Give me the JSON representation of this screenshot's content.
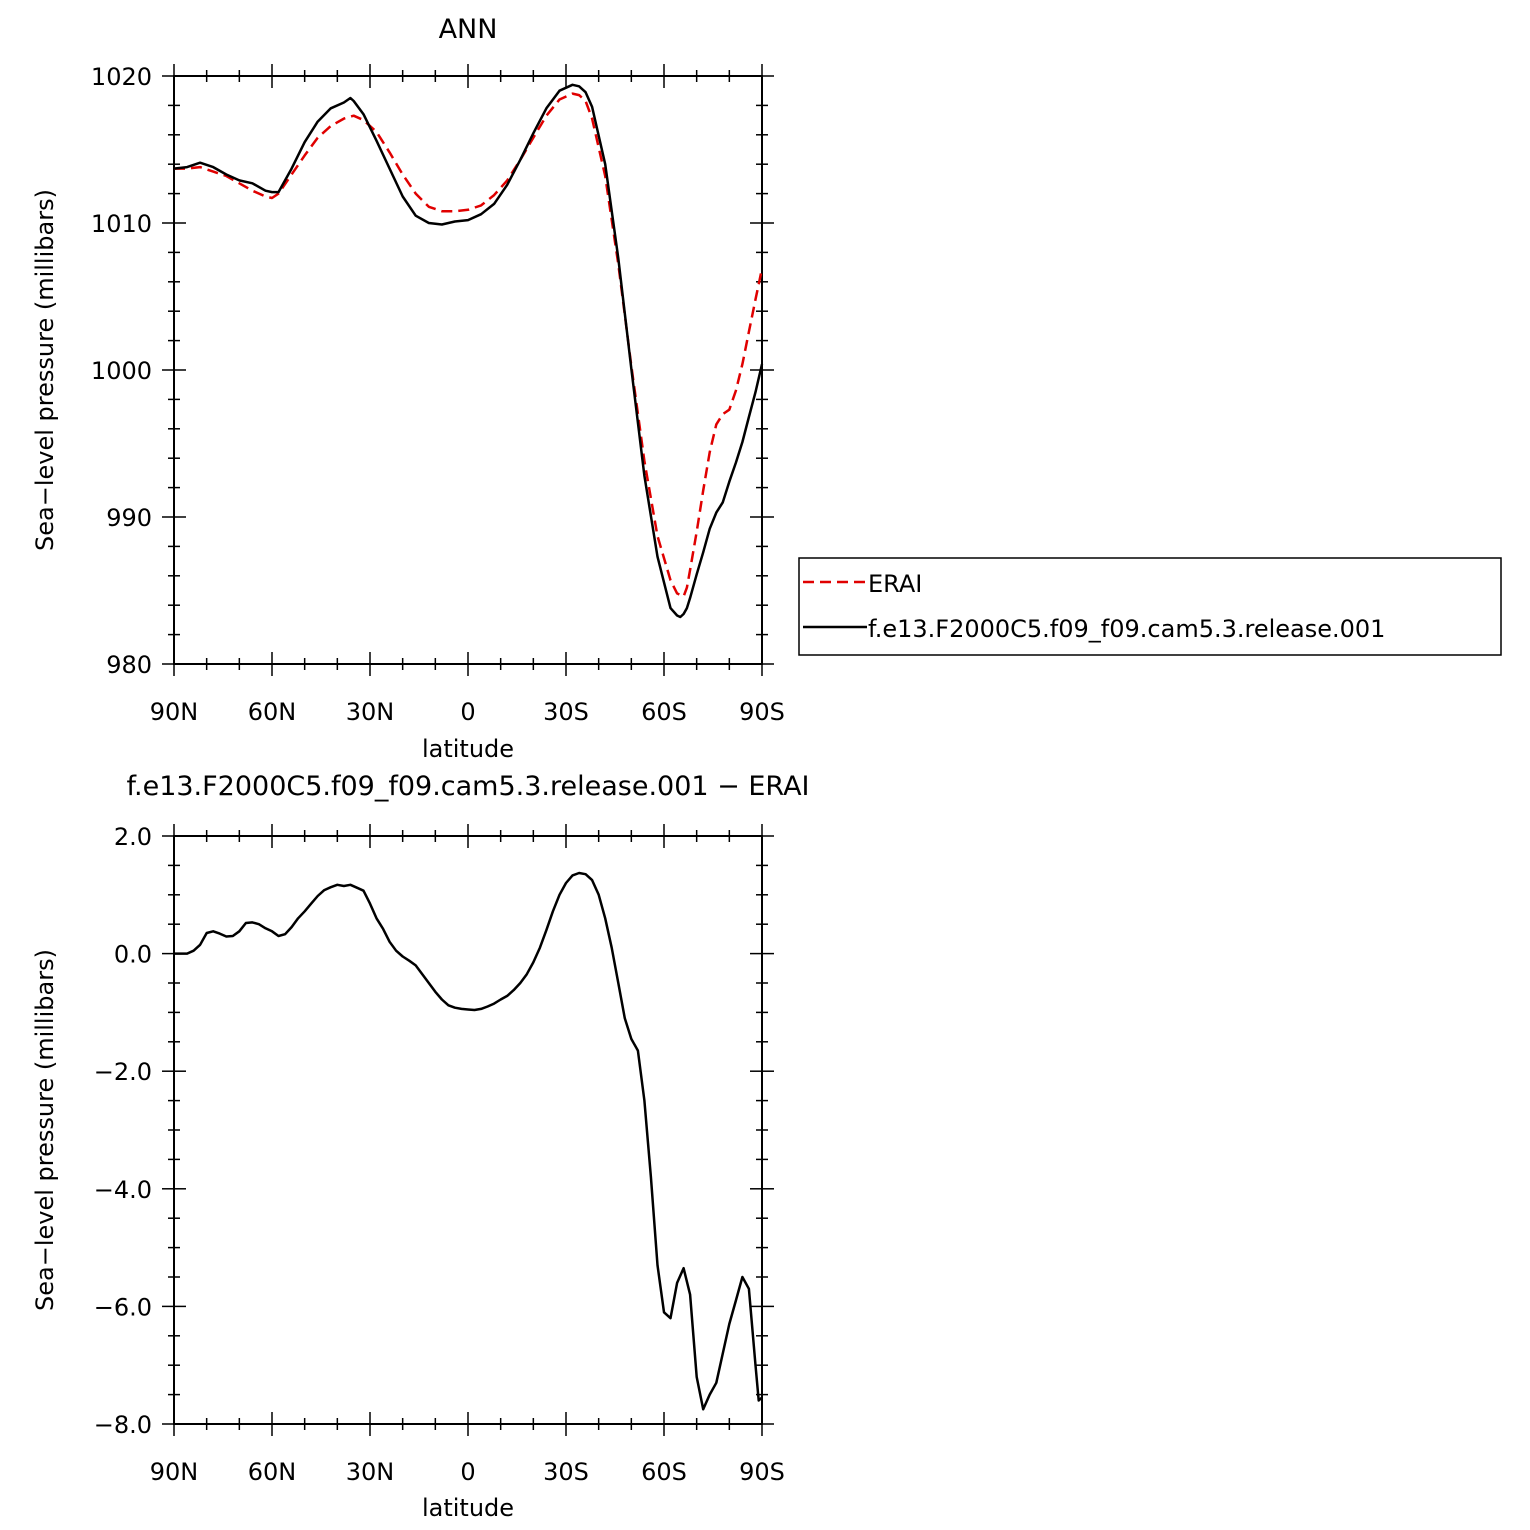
{
  "chart_data": [
    {
      "type": "line",
      "title": "ANN",
      "xlabel": "latitude",
      "ylabel": "Sea−level pressure (millibars)",
      "xlim": [
        90,
        -90
      ],
      "ylim": [
        980,
        1020
      ],
      "x_ticks": [
        90,
        60,
        30,
        0,
        -30,
        -60,
        -90
      ],
      "x_tick_labels": [
        "90N",
        "60N",
        "30N",
        "0",
        "30S",
        "60S",
        "90S"
      ],
      "y_ticks": [
        980,
        990,
        1000,
        1010,
        1020
      ],
      "y_tick_labels": [
        "980",
        "990",
        "1000",
        "1010",
        "1020"
      ],
      "grid": false,
      "legend_position": "right",
      "series": [
        {
          "name": "ERAI",
          "color": "#e00000",
          "style": "dashed",
          "x": [
            90,
            86,
            82,
            78,
            74,
            70,
            66,
            62,
            60,
            58,
            54,
            50,
            46,
            42,
            38,
            35,
            32,
            28,
            24,
            20,
            16,
            12,
            8,
            4,
            0,
            -4,
            -8,
            -12,
            -16,
            -20,
            -24,
            -28,
            -32,
            -34,
            -36,
            -38,
            -42,
            -46,
            -50,
            -54,
            -58,
            -62,
            -64,
            -66,
            -67,
            -68,
            -70,
            -72,
            -74,
            -76,
            -78,
            -80,
            -82,
            -84,
            -86,
            -88,
            -90
          ],
          "y": [
            1013.7,
            1013.7,
            1013.8,
            1013.5,
            1013.2,
            1012.7,
            1012.2,
            1011.8,
            1011.7,
            1012.0,
            1013.3,
            1014.6,
            1015.8,
            1016.6,
            1017.1,
            1017.3,
            1017.0,
            1016.2,
            1014.8,
            1013.3,
            1012.0,
            1011.1,
            1010.8,
            1010.8,
            1010.9,
            1011.2,
            1011.9,
            1012.9,
            1014.3,
            1015.8,
            1017.3,
            1018.4,
            1018.8,
            1018.7,
            1018.3,
            1017.1,
            1013.2,
            1007.2,
            1000.3,
            993.8,
            988.7,
            985.7,
            984.8,
            984.6,
            985.2,
            986.4,
            989.0,
            991.8,
            994.4,
            996.3,
            997.0,
            997.3,
            998.6,
            1000.4,
            1002.6,
            1004.8,
            1006.9
          ]
        },
        {
          "name": "f.e13.F2000C5.f09_f09.cam5.3.release.001",
          "color": "#000000",
          "style": "solid",
          "x": [
            90,
            86,
            82,
            78,
            74,
            70,
            66,
            62,
            60,
            58,
            54,
            50,
            46,
            42,
            38,
            36,
            35,
            32,
            28,
            24,
            20,
            16,
            12,
            8,
            4,
            0,
            -4,
            -8,
            -12,
            -16,
            -20,
            -24,
            -28,
            -32,
            -34,
            -36,
            -38,
            -42,
            -46,
            -50,
            -54,
            -58,
            -62,
            -64,
            -65,
            -66,
            -67,
            -68,
            -70,
            -72,
            -74,
            -76,
            -78,
            -80,
            -82,
            -84,
            -86,
            -88,
            -90
          ],
          "y": [
            1013.7,
            1013.8,
            1014.1,
            1013.8,
            1013.3,
            1012.9,
            1012.7,
            1012.2,
            1012.1,
            1012.1,
            1013.7,
            1015.5,
            1016.9,
            1017.8,
            1018.2,
            1018.5,
            1018.3,
            1017.4,
            1015.6,
            1013.7,
            1011.8,
            1010.5,
            1010.0,
            1009.9,
            1010.1,
            1010.2,
            1010.6,
            1011.3,
            1012.6,
            1014.3,
            1016.1,
            1017.8,
            1019.0,
            1019.4,
            1019.3,
            1018.9,
            1017.9,
            1014.0,
            1007.6,
            1000.1,
            992.8,
            987.3,
            983.8,
            983.3,
            983.2,
            983.4,
            983.8,
            984.5,
            986.1,
            987.6,
            989.2,
            990.3,
            991.0,
            992.4,
            993.7,
            995.1,
            996.8,
            998.5,
            1000.4
          ]
        }
      ]
    },
    {
      "type": "line",
      "title": "f.e13.F2000C5.f09_f09.cam5.3.release.001  −  ERAI",
      "xlabel": "latitude",
      "ylabel": "Sea−level pressure (millibars)",
      "xlim": [
        90,
        -90
      ],
      "ylim": [
        -8,
        2
      ],
      "x_ticks": [
        90,
        60,
        30,
        0,
        -30,
        -60,
        -90
      ],
      "x_tick_labels": [
        "90N",
        "60N",
        "30N",
        "0",
        "30S",
        "60S",
        "90S"
      ],
      "y_ticks": [
        -8,
        -6,
        -4,
        -2,
        0,
        2
      ],
      "y_tick_labels": [
        "−8.0",
        "−6.0",
        "−4.0",
        "−2.0",
        "0.0",
        "2.0"
      ],
      "grid": false,
      "series": [
        {
          "color": "#000000",
          "style": "solid",
          "x": [
            90,
            86,
            84,
            82,
            80,
            78,
            76,
            74,
            72,
            70,
            68,
            66,
            64,
            62,
            60,
            58,
            56,
            54,
            52,
            50,
            48,
            46,
            44,
            42,
            40,
            38,
            36,
            34,
            32,
            30,
            28,
            26,
            24,
            22,
            20,
            18,
            16,
            14,
            12,
            10,
            8,
            6,
            4,
            2,
            0,
            -2,
            -4,
            -6,
            -8,
            -10,
            -12,
            -14,
            -16,
            -18,
            -20,
            -22,
            -24,
            -26,
            -28,
            -30,
            -32,
            -34,
            -36,
            -38,
            -40,
            -42,
            -44,
            -46,
            -48,
            -50,
            -52,
            -54,
            -56,
            -58,
            -60,
            -62,
            -64,
            -66,
            -68,
            -70,
            -72,
            -74,
            -76,
            -78,
            -80,
            -82,
            -84,
            -86,
            -88,
            -89,
            -90
          ],
          "y": [
            0.0,
            0.0,
            0.05,
            0.15,
            0.35,
            0.38,
            0.34,
            0.29,
            0.3,
            0.38,
            0.52,
            0.53,
            0.5,
            0.43,
            0.38,
            0.3,
            0.33,
            0.45,
            0.6,
            0.72,
            0.85,
            0.98,
            1.08,
            1.13,
            1.17,
            1.15,
            1.17,
            1.12,
            1.07,
            0.85,
            0.6,
            0.42,
            0.2,
            0.05,
            -0.05,
            -0.12,
            -0.2,
            -0.35,
            -0.5,
            -0.65,
            -0.78,
            -0.88,
            -0.92,
            -0.94,
            -0.95,
            -0.96,
            -0.94,
            -0.9,
            -0.85,
            -0.78,
            -0.72,
            -0.62,
            -0.5,
            -0.35,
            -0.15,
            0.1,
            0.4,
            0.72,
            1.0,
            1.2,
            1.33,
            1.37,
            1.35,
            1.25,
            1.0,
            0.6,
            0.1,
            -0.5,
            -1.1,
            -1.45,
            -1.65,
            -2.5,
            -3.8,
            -5.3,
            -6.1,
            -6.2,
            -5.6,
            -5.35,
            -5.8,
            -7.2,
            -7.75,
            -7.5,
            -7.3,
            -6.8,
            -6.3,
            -5.9,
            -5.5,
            -5.7,
            -7.0,
            -7.6,
            -7.55
          ]
        }
      ]
    }
  ]
}
